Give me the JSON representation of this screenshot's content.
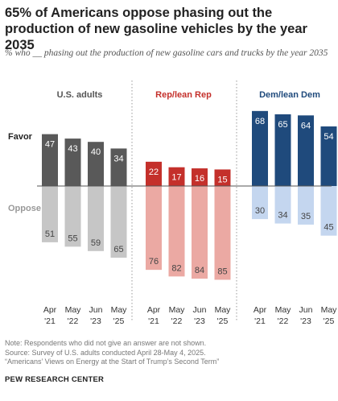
{
  "title": "65% of Americans oppose phasing out the production of new gasoline vehicles by the year 2035",
  "subtitle": "% who __ phasing out the production of new gasoline cars and trucks by the year 2035",
  "chart_data": {
    "type": "bar",
    "title": "65% of Americans oppose phasing out the production of new gasoline vehicles by the year 2035",
    "subtitle": "% who __ phasing out the production of new gasoline cars and trucks by the year 2035",
    "row_labels": {
      "favor": "Favor",
      "oppose": "Oppose"
    },
    "categories": [
      {
        "month": "Apr",
        "year": "'21"
      },
      {
        "month": "May",
        "year": "'22"
      },
      {
        "month": "Jun",
        "year": "'23"
      },
      {
        "month": "May",
        "year": "'25"
      }
    ],
    "groups": [
      {
        "name": "U.S. adults",
        "favor": [
          47,
          43,
          40,
          34
        ],
        "oppose": [
          51,
          55,
          59,
          65
        ],
        "favor_color": "#595959",
        "oppose_color": "#c6c6c6",
        "label_color": "#555555"
      },
      {
        "name": "Rep/lean Rep",
        "favor": [
          22,
          17,
          16,
          15
        ],
        "oppose": [
          76,
          82,
          84,
          85
        ],
        "favor_color": "#c4302b",
        "oppose_color": "#eba9a3",
        "label_color": "#c4302b"
      },
      {
        "name": "Dem/lean Dem",
        "favor": [
          68,
          65,
          64,
          54
        ],
        "oppose": [
          30,
          34,
          35,
          45
        ],
        "favor_color": "#1f4a7c",
        "oppose_color": "#c4d6ef",
        "label_color": "#1f4a7c"
      }
    ]
  },
  "notes": [
    "Note: Respondents who did not give an answer are not shown.",
    "Source: Survey of U.S. adults conducted April 28-May 4, 2025.",
    "“Americans’ Views on Energy at the Start of Trump’s Second Term”"
  ],
  "brand": "PEW RESEARCH CENTER"
}
